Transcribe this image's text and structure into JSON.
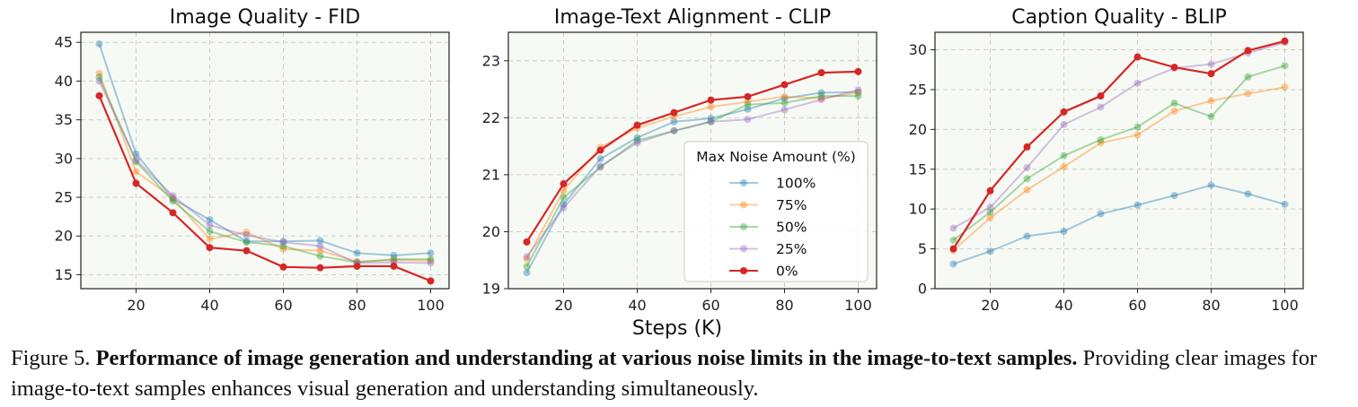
{
  "figure": {
    "shared_xlabel": "Steps (K)",
    "caption": {
      "label": "Figure 5.",
      "bold": "Performance of image generation and understanding at various noise limits in the image-to-text samples.",
      "rest": "Providing clear images for image-to-text samples enhances visual generation and understanding simultaneously."
    }
  },
  "colors": {
    "100%": "#1f77b4",
    "75%": "#ff7f0e",
    "50%": "#2ca02c",
    "25%": "#9467bd",
    "0%": "#d62728",
    "plot_bg": "#f7faf4"
  },
  "chart_data": [
    {
      "type": "line",
      "title": "Image Quality - FID",
      "xlabel": "",
      "ylabel": "",
      "x": [
        10,
        20,
        30,
        40,
        50,
        60,
        70,
        80,
        90,
        100
      ],
      "xticks": [
        20,
        40,
        60,
        80,
        100
      ],
      "yticks": [
        15,
        20,
        25,
        30,
        35,
        40,
        45
      ],
      "xlim": [
        5,
        105
      ],
      "ylim": [
        13.2,
        46.3
      ],
      "grid": true,
      "series": [
        {
          "name": "100%",
          "values": [
            44.8,
            30.6,
            24.8,
            22.1,
            19.3,
            19.3,
            19.4,
            17.8,
            17.5,
            17.8
          ]
        },
        {
          "name": "75%",
          "values": [
            41.0,
            28.3,
            24.9,
            19.6,
            20.5,
            18.3,
            18.1,
            16.7,
            16.9,
            16.8
          ]
        },
        {
          "name": "50%",
          "values": [
            40.5,
            29.6,
            24.5,
            20.6,
            19.2,
            18.7,
            17.4,
            16.6,
            17.0,
            17.0
          ]
        },
        {
          "name": "25%",
          "values": [
            40.0,
            29.8,
            25.2,
            21.4,
            20.1,
            19.2,
            18.7,
            16.5,
            16.6,
            16.5
          ]
        },
        {
          "name": "0%",
          "values": [
            38.1,
            26.8,
            23.0,
            18.5,
            18.1,
            16.0,
            15.9,
            16.1,
            16.1,
            14.2
          ]
        }
      ]
    },
    {
      "type": "line",
      "title": "Image-Text Alignment - CLIP",
      "xlabel": "",
      "ylabel": "",
      "x": [
        10,
        20,
        30,
        40,
        50,
        60,
        70,
        80,
        90,
        100
      ],
      "xticks": [
        20,
        40,
        60,
        80,
        100
      ],
      "yticks": [
        19,
        20,
        21,
        22,
        23
      ],
      "xlim": [
        5,
        105
      ],
      "ylim": [
        19.0,
        23.5
      ],
      "grid": true,
      "legend": {
        "title": "Max Noise Amount (%)",
        "entries": [
          "100%",
          "75%",
          "50%",
          "25%",
          "0%"
        ],
        "placement": "lower-right"
      },
      "series": [
        {
          "name": "100%",
          "values": [
            19.28,
            20.48,
            21.28,
            21.65,
            21.93,
            21.99,
            22.15,
            22.34,
            22.44,
            22.45
          ]
        },
        {
          "name": "75%",
          "values": [
            19.52,
            20.72,
            21.48,
            21.82,
            22.02,
            22.19,
            22.28,
            22.37,
            22.34,
            22.44
          ]
        },
        {
          "name": "50%",
          "values": [
            19.39,
            20.6,
            21.13,
            21.6,
            21.77,
            21.93,
            22.23,
            22.26,
            22.38,
            22.38
          ]
        },
        {
          "name": "25%",
          "values": [
            19.56,
            20.42,
            21.15,
            21.56,
            21.77,
            21.93,
            21.97,
            22.14,
            22.32,
            22.49
          ]
        },
        {
          "name": "0%",
          "values": [
            19.82,
            20.84,
            21.43,
            21.87,
            22.09,
            22.31,
            22.37,
            22.58,
            22.79,
            22.81
          ]
        }
      ]
    },
    {
      "type": "line",
      "title": "Caption Quality - BLIP",
      "xlabel": "",
      "ylabel": "",
      "x": [
        10,
        20,
        30,
        40,
        50,
        60,
        70,
        80,
        90,
        100
      ],
      "xticks": [
        20,
        40,
        60,
        80,
        100
      ],
      "yticks": [
        0,
        5,
        10,
        15,
        20,
        25,
        30
      ],
      "xlim": [
        5,
        105
      ],
      "ylim": [
        0,
        32.2
      ],
      "grid": true,
      "series": [
        {
          "name": "100%",
          "values": [
            3.1,
            4.7,
            6.6,
            7.2,
            9.4,
            10.5,
            11.7,
            13.0,
            11.9,
            10.6
          ]
        },
        {
          "name": "75%",
          "values": [
            4.8,
            8.9,
            12.4,
            15.3,
            18.3,
            19.3,
            22.3,
            23.6,
            24.5,
            25.3
          ]
        },
        {
          "name": "50%",
          "values": [
            6.1,
            9.6,
            13.8,
            16.7,
            18.7,
            20.3,
            23.3,
            21.6,
            26.6,
            28.0
          ]
        },
        {
          "name": "25%",
          "values": [
            7.6,
            10.2,
            15.2,
            20.6,
            22.8,
            25.8,
            27.7,
            28.2,
            29.6,
            30.9
          ]
        },
        {
          "name": "0%",
          "values": [
            5.0,
            12.3,
            17.8,
            22.2,
            24.2,
            29.1,
            27.8,
            27.0,
            29.9,
            31.1
          ]
        }
      ]
    }
  ]
}
